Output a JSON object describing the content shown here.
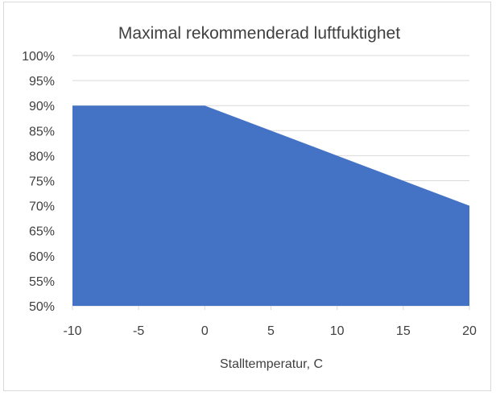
{
  "chart_data": {
    "type": "area",
    "title": "Maximal rekommenderad luftfuktighet",
    "xlabel": "Stalltemperatur, C",
    "ylabel": "",
    "x": [
      -10,
      0,
      20
    ],
    "series": [
      {
        "values": [
          90,
          90,
          70
        ]
      }
    ],
    "xlim": [
      -10,
      20
    ],
    "ylim": [
      50,
      100
    ],
    "xticks": [
      -10,
      -5,
      0,
      5,
      10,
      15,
      20
    ],
    "yticks": [
      50,
      55,
      60,
      65,
      70,
      75,
      80,
      85,
      90,
      95,
      100
    ],
    "ytick_format": "percent",
    "grid": "horizontal",
    "legend": "none",
    "colors": {
      "fill": "#4472c4",
      "grid": "#d9d9d9",
      "text": "#404040",
      "frame": "#d9d9d9"
    }
  }
}
